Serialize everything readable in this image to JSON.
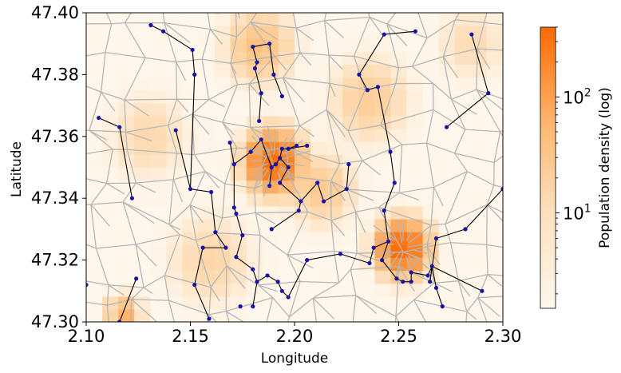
{
  "chart_data": {
    "type": "heatmap",
    "title": "",
    "xlabel": "Longitude",
    "ylabel": "Latitude",
    "xlim": [
      2.1,
      2.3
    ],
    "ylim": [
      47.3,
      47.4
    ],
    "x_ticks": [
      "2.10",
      "2.15",
      "2.20",
      "2.25",
      "2.30"
    ],
    "y_ticks": [
      "47.30",
      "47.32",
      "47.34",
      "47.36",
      "47.38",
      "47.40"
    ],
    "colorbar": {
      "label": "Population density (log)",
      "scale": "log",
      "range": [
        1.5,
        400
      ],
      "ticks": [
        {
          "value": 10,
          "label_base": "10",
          "label_exp": "1"
        },
        {
          "value": 100,
          "label_base": "10",
          "label_exp": "2"
        }
      ],
      "color_low": "#fff8ee",
      "color_high": "#ff6a00"
    },
    "density_hotspots": [
      {
        "lon": 2.19,
        "lat": 47.352,
        "peak": 350,
        "spread": 0.01
      },
      {
        "lon": 2.252,
        "lat": 47.324,
        "peak": 380,
        "spread": 0.009
      },
      {
        "lon": 2.183,
        "lat": 47.389,
        "peak": 40,
        "spread": 0.012
      },
      {
        "lon": 2.236,
        "lat": 47.372,
        "peak": 20,
        "spread": 0.014
      },
      {
        "lon": 2.118,
        "lat": 47.303,
        "peak": 60,
        "spread": 0.006
      },
      {
        "lon": 2.213,
        "lat": 47.343,
        "peak": 25,
        "spread": 0.012
      },
      {
        "lon": 2.16,
        "lat": 47.32,
        "peak": 12,
        "spread": 0.015
      },
      {
        "lon": 2.13,
        "lat": 47.36,
        "peak": 10,
        "spread": 0.014
      },
      {
        "lon": 2.285,
        "lat": 47.39,
        "peak": 8,
        "spread": 0.012
      }
    ],
    "network_nodes": [
      [
        2.131,
        47.396
      ],
      [
        2.137,
        47.394
      ],
      [
        2.151,
        47.388
      ],
      [
        2.152,
        47.38
      ],
      [
        2.18,
        47.389
      ],
      [
        2.188,
        47.39
      ],
      [
        2.182,
        47.384
      ],
      [
        2.181,
        47.382
      ],
      [
        2.184,
        47.374
      ],
      [
        2.19,
        47.38
      ],
      [
        2.194,
        47.373
      ],
      [
        2.183,
        47.365
      ],
      [
        2.106,
        47.366
      ],
      [
        2.116,
        47.363
      ],
      [
        2.122,
        47.34
      ],
      [
        2.143,
        47.362
      ],
      [
        2.15,
        47.343
      ],
      [
        2.16,
        47.342
      ],
      [
        2.162,
        47.329
      ],
      [
        2.169,
        47.358
      ],
      [
        2.171,
        47.351
      ],
      [
        2.179,
        47.355
      ],
      [
        2.184,
        47.359
      ],
      [
        2.189,
        47.35
      ],
      [
        2.188,
        47.344
      ],
      [
        2.191,
        47.351
      ],
      [
        2.193,
        47.353
      ],
      [
        2.194,
        47.356
      ],
      [
        2.193,
        47.345
      ],
      [
        2.197,
        47.356
      ],
      [
        2.201,
        47.357
      ],
      [
        2.197,
        47.35
      ],
      [
        2.206,
        47.357
      ],
      [
        2.203,
        47.339
      ],
      [
        2.211,
        47.345
      ],
      [
        2.202,
        47.336
      ],
      [
        2.189,
        47.33
      ],
      [
        2.214,
        47.339
      ],
      [
        2.225,
        47.343
      ],
      [
        2.226,
        47.351
      ],
      [
        2.231,
        47.38
      ],
      [
        2.235,
        47.375
      ],
      [
        2.24,
        47.376
      ],
      [
        2.243,
        47.393
      ],
      [
        2.258,
        47.394
      ],
      [
        2.246,
        47.355
      ],
      [
        2.248,
        47.345
      ],
      [
        2.243,
        47.336
      ],
      [
        2.245,
        47.326
      ],
      [
        2.238,
        47.324
      ],
      [
        2.236,
        47.319
      ],
      [
        2.242,
        47.32
      ],
      [
        2.249,
        47.314
      ],
      [
        2.252,
        47.313
      ],
      [
        2.256,
        47.313
      ],
      [
        2.256,
        47.316
      ],
      [
        2.264,
        47.315
      ],
      [
        2.266,
        47.318
      ],
      [
        2.265,
        47.313
      ],
      [
        2.268,
        47.327
      ],
      [
        2.268,
        47.311
      ],
      [
        2.271,
        47.305
      ],
      [
        2.282,
        47.33
      ],
      [
        2.285,
        47.393
      ],
      [
        2.293,
        47.374
      ],
      [
        2.273,
        47.363
      ],
      [
        2.3,
        47.343
      ],
      [
        2.29,
        47.31
      ],
      [
        2.171,
        47.337
      ],
      [
        2.172,
        47.335
      ],
      [
        2.175,
        47.328
      ],
      [
        2.167,
        47.324
      ],
      [
        2.172,
        47.321
      ],
      [
        2.18,
        47.317
      ],
      [
        2.182,
        47.313
      ],
      [
        2.187,
        47.315
      ],
      [
        2.192,
        47.313
      ],
      [
        2.194,
        47.31
      ],
      [
        2.197,
        47.308
      ],
      [
        2.18,
        47.305
      ],
      [
        2.174,
        47.305
      ],
      [
        2.156,
        47.324
      ],
      [
        2.152,
        47.312
      ],
      [
        2.159,
        47.301
      ],
      [
        2.124,
        47.314
      ],
      [
        2.116,
        47.3
      ],
      [
        2.1,
        47.312
      ],
      [
        2.206,
        47.32
      ],
      [
        2.222,
        47.322
      ]
    ],
    "network_edges": [
      [
        0,
        1
      ],
      [
        1,
        2
      ],
      [
        2,
        3
      ],
      [
        3,
        16
      ],
      [
        4,
        5
      ],
      [
        4,
        6
      ],
      [
        6,
        7
      ],
      [
        7,
        8
      ],
      [
        8,
        11
      ],
      [
        5,
        9
      ],
      [
        9,
        10
      ],
      [
        12,
        13
      ],
      [
        13,
        14
      ],
      [
        15,
        16
      ],
      [
        16,
        17
      ],
      [
        17,
        18
      ],
      [
        18,
        71
      ],
      [
        19,
        20
      ],
      [
        20,
        21
      ],
      [
        21,
        22
      ],
      [
        22,
        23
      ],
      [
        23,
        24
      ],
      [
        23,
        25
      ],
      [
        25,
        26
      ],
      [
        26,
        27
      ],
      [
        27,
        29
      ],
      [
        29,
        30
      ],
      [
        26,
        31
      ],
      [
        31,
        28
      ],
      [
        28,
        33
      ],
      [
        33,
        35
      ],
      [
        35,
        36
      ],
      [
        33,
        34
      ],
      [
        34,
        37
      ],
      [
        37,
        38
      ],
      [
        38,
        39
      ],
      [
        29,
        32
      ],
      [
        20,
        68
      ],
      [
        68,
        69
      ],
      [
        69,
        70
      ],
      [
        70,
        72
      ],
      [
        72,
        73
      ],
      [
        73,
        74
      ],
      [
        74,
        75
      ],
      [
        75,
        76
      ],
      [
        76,
        77
      ],
      [
        77,
        78
      ],
      [
        74,
        79
      ],
      [
        71,
        81
      ],
      [
        81,
        82
      ],
      [
        82,
        83
      ],
      [
        84,
        85
      ],
      [
        40,
        41
      ],
      [
        41,
        42
      ],
      [
        40,
        43
      ],
      [
        43,
        44
      ],
      [
        42,
        45
      ],
      [
        45,
        46
      ],
      [
        46,
        47
      ],
      [
        47,
        48
      ],
      [
        48,
        49
      ],
      [
        49,
        50
      ],
      [
        48,
        51
      ],
      [
        51,
        52
      ],
      [
        52,
        53
      ],
      [
        53,
        54
      ],
      [
        54,
        55
      ],
      [
        55,
        56
      ],
      [
        56,
        57
      ],
      [
        57,
        58
      ],
      [
        58,
        59
      ],
      [
        59,
        62
      ],
      [
        57,
        60
      ],
      [
        60,
        61
      ],
      [
        57,
        67
      ],
      [
        62,
        66
      ],
      [
        63,
        64
      ],
      [
        64,
        65
      ],
      [
        87,
        88
      ],
      [
        88,
        50
      ],
      [
        78,
        87
      ]
    ]
  }
}
